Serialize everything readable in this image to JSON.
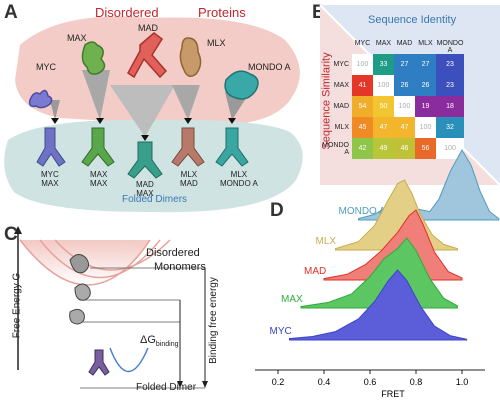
{
  "panels": {
    "a": "A",
    "b": "B",
    "c": "C",
    "d": "D"
  },
  "colors": {
    "disordered_bg": "#f2c9c4",
    "folded_bg": "#cfe3e2",
    "title_red": "#c1272d",
    "title_blue": "#3a78b5"
  },
  "panel_a": {
    "title_left": "Disordered",
    "title_right": "Proteins",
    "monomers": [
      "MYC",
      "MAX",
      "MAD",
      "MLX",
      "MONDO A"
    ],
    "footer": "Folded Dimers",
    "dimers": [
      {
        "top": "MYC",
        "bottom": "MAX"
      },
      {
        "top": "MAX",
        "bottom": "MAX"
      },
      {
        "top": "MAD",
        "bottom": "MAX"
      },
      {
        "top": "MLX",
        "bottom": "MAD"
      },
      {
        "top": "MLX",
        "bottom": "MONDO A"
      }
    ]
  },
  "panel_b": {
    "top_label": "Sequence Identity",
    "side_label": "Sequence Similarity",
    "columns": [
      "MYC",
      "MAX",
      "MAD",
      "MLX",
      "MONDO A"
    ],
    "rows": [
      {
        "label": "MYC",
        "cells": [
          {
            "v": "100",
            "c": "#ffffff"
          },
          {
            "v": "33",
            "c": "#1f9c86"
          },
          {
            "v": "27",
            "c": "#2f7dc3"
          },
          {
            "v": "27",
            "c": "#2f7dc3"
          },
          {
            "v": "23",
            "c": "#3b4fbd"
          }
        ]
      },
      {
        "label": "MAX",
        "cells": [
          {
            "v": "41",
            "c": "#e53728"
          },
          {
            "v": "100",
            "c": "#ffffff"
          },
          {
            "v": "26",
            "c": "#2f7dc3"
          },
          {
            "v": "26",
            "c": "#2f7dc3"
          },
          {
            "v": "23",
            "c": "#3b4fbd"
          }
        ]
      },
      {
        "label": "MAD",
        "cells": [
          {
            "v": "54",
            "c": "#f0ad2a"
          },
          {
            "v": "50",
            "c": "#f2c630"
          },
          {
            "v": "100",
            "c": "#ffffff"
          },
          {
            "v": "19",
            "c": "#8a2c9d"
          },
          {
            "v": "18",
            "c": "#8a2c9d"
          }
        ]
      },
      {
        "label": "MLX",
        "cells": [
          {
            "v": "45",
            "c": "#f08a25"
          },
          {
            "v": "47",
            "c": "#f2b52c"
          },
          {
            "v": "47",
            "c": "#f2b52c"
          },
          {
            "v": "100",
            "c": "#ffffff"
          },
          {
            "v": "32",
            "c": "#2a8fb9"
          }
        ]
      },
      {
        "label": "MONDO A",
        "cells": [
          {
            "v": "42",
            "c": "#8fc64a"
          },
          {
            "v": "49",
            "c": "#b9c63a"
          },
          {
            "v": "46",
            "c": "#bfc236"
          },
          {
            "v": "56",
            "c": "#e9692a"
          },
          {
            "v": "100",
            "c": "#ffffff"
          }
        ]
      }
    ]
  },
  "panel_c": {
    "y_label": "Free Energy G",
    "disordered_line1": "Disordered",
    "disordered_line2": "Monomers",
    "binding_label": "Binding free energy",
    "delta_g": "ΔG",
    "delta_sub": "binding",
    "folded_label": "Folded Dimer"
  },
  "chart_data": {
    "type": "area",
    "xlabel": "FRET",
    "ylabel": "",
    "xlim": [
      0.1,
      1.1
    ],
    "ticks": [
      "0.2",
      "0.4",
      "0.6",
      "0.8",
      "1.0"
    ],
    "tick_values": [
      0.2,
      0.4,
      0.6,
      0.8,
      1.0
    ],
    "grid": false,
    "series": [
      {
        "name": "MONDO A",
        "color": "#4f9cc0",
        "fill": "#9fc6dd",
        "points": [
          [
            0.55,
            0.02
          ],
          [
            0.62,
            0.08
          ],
          [
            0.68,
            0.2
          ],
          [
            0.72,
            0.3
          ],
          [
            0.76,
            0.26
          ],
          [
            0.8,
            0.16
          ],
          [
            0.86,
            0.12
          ],
          [
            0.9,
            0.3
          ],
          [
            0.95,
            0.7
          ],
          [
            1.0,
            1.0
          ],
          [
            1.04,
            0.78
          ],
          [
            1.08,
            0.4
          ],
          [
            1.12,
            0.12
          ],
          [
            1.16,
            0.02
          ]
        ]
      },
      {
        "name": "MLX",
        "color": "#c7ad4c",
        "fill": "#e3cf85",
        "points": [
          [
            0.45,
            0.02
          ],
          [
            0.55,
            0.12
          ],
          [
            0.62,
            0.35
          ],
          [
            0.68,
            0.72
          ],
          [
            0.72,
            0.95
          ],
          [
            0.75,
            1.0
          ],
          [
            0.78,
            0.82
          ],
          [
            0.82,
            0.5
          ],
          [
            0.87,
            0.22
          ],
          [
            0.92,
            0.08
          ],
          [
            0.98,
            0.02
          ]
        ]
      },
      {
        "name": "MAD",
        "color": "#e0302a",
        "fill": "#ef7f78",
        "points": [
          [
            0.4,
            0.02
          ],
          [
            0.5,
            0.08
          ],
          [
            0.58,
            0.22
          ],
          [
            0.65,
            0.42
          ],
          [
            0.72,
            0.68
          ],
          [
            0.77,
            0.92
          ],
          [
            0.8,
            1.0
          ],
          [
            0.83,
            0.8
          ],
          [
            0.88,
            0.4
          ],
          [
            0.94,
            0.12
          ],
          [
            1.0,
            0.03
          ]
        ]
      },
      {
        "name": "MAX",
        "color": "#2faa3a",
        "fill": "#5cc762",
        "points": [
          [
            0.3,
            0.02
          ],
          [
            0.42,
            0.08
          ],
          [
            0.52,
            0.2
          ],
          [
            0.6,
            0.45
          ],
          [
            0.66,
            0.7
          ],
          [
            0.72,
            0.85
          ],
          [
            0.76,
            1.0
          ],
          [
            0.8,
            0.82
          ],
          [
            0.86,
            0.42
          ],
          [
            0.92,
            0.14
          ],
          [
            0.98,
            0.03
          ]
        ]
      },
      {
        "name": "MYC",
        "color": "#3a44c8",
        "fill": "#5c5ed9",
        "points": [
          [
            0.25,
            0.02
          ],
          [
            0.35,
            0.05
          ],
          [
            0.45,
            0.12
          ],
          [
            0.55,
            0.3
          ],
          [
            0.62,
            0.55
          ],
          [
            0.68,
            0.85
          ],
          [
            0.72,
            1.0
          ],
          [
            0.76,
            0.85
          ],
          [
            0.82,
            0.48
          ],
          [
            0.88,
            0.2
          ],
          [
            0.95,
            0.06
          ],
          [
            1.02,
            0.01
          ]
        ]
      }
    ]
  }
}
